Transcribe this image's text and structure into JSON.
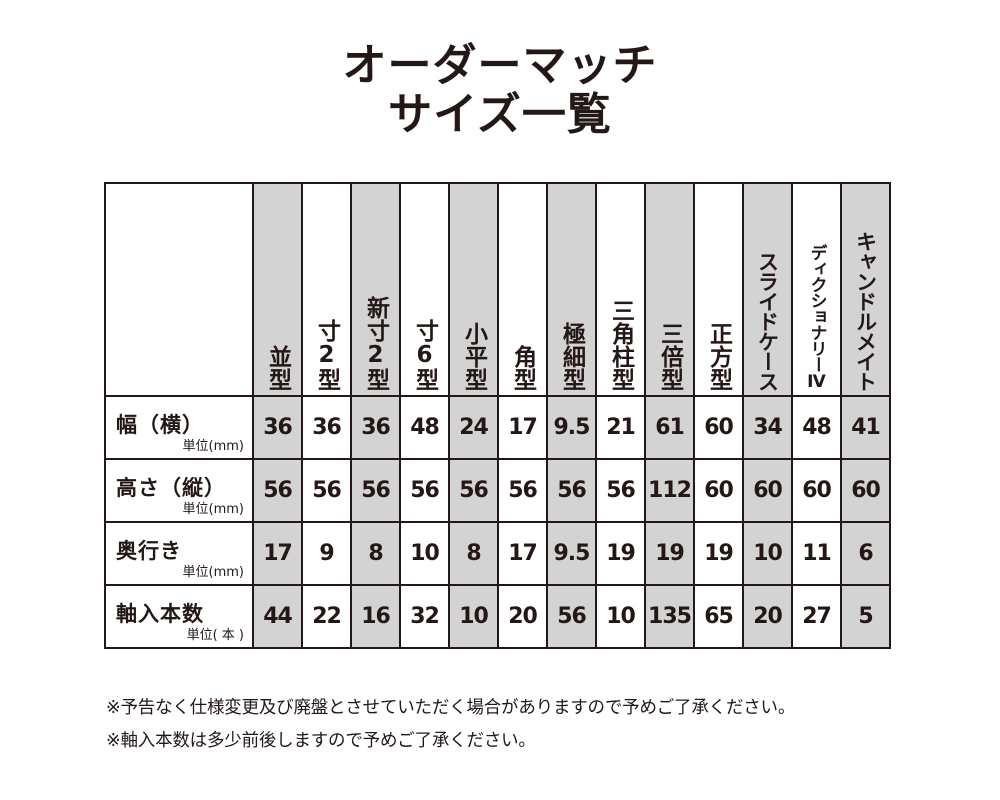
{
  "title": {
    "line1": "オーダーマッチ",
    "line2": "サイズ一覧"
  },
  "table": {
    "columns": [
      {
        "label": "並型",
        "shaded": true
      },
      {
        "label": "寸2型",
        "shaded": false
      },
      {
        "label": "新寸2型",
        "shaded": true
      },
      {
        "label": "寸6型",
        "shaded": false
      },
      {
        "label": "小平型",
        "shaded": true
      },
      {
        "label": "角型",
        "shaded": false
      },
      {
        "label": "極細型",
        "shaded": true
      },
      {
        "label": "三角柱型",
        "shaded": false
      },
      {
        "label": "三倍型",
        "shaded": true
      },
      {
        "label": "正方型",
        "shaded": false
      },
      {
        "label": "スライドケース",
        "shaded": true
      },
      {
        "label": "ディクショナリーⅣ",
        "shaded": false
      },
      {
        "label": "キャンドルメイト",
        "shaded": true
      }
    ],
    "rows": [
      {
        "label": "幅（横）",
        "unit": "単位(mm)",
        "values": [
          "36",
          "36",
          "36",
          "48",
          "24",
          "17",
          "9.5",
          "21",
          "61",
          "60",
          "34",
          "48",
          "41"
        ]
      },
      {
        "label": "高さ（縦）",
        "unit": "単位(mm)",
        "values": [
          "56",
          "56",
          "56",
          "56",
          "56",
          "56",
          "56",
          "56",
          "112",
          "60",
          "60",
          "60",
          "60"
        ]
      },
      {
        "label": "奥行き",
        "unit": "単位(mm)",
        "values": [
          "17",
          "9",
          "8",
          "10",
          "8",
          "17",
          "9.5",
          "19",
          "19",
          "19",
          "10",
          "11",
          "6"
        ]
      },
      {
        "label": "軸入本数",
        "unit": "単位( 本 )",
        "values": [
          "44",
          "22",
          "16",
          "32",
          "10",
          "20",
          "56",
          "10",
          "135",
          "65",
          "20",
          "27",
          "5"
        ]
      }
    ]
  },
  "notes": {
    "line1": "※予告なく仕様変更及び廃盤とさせていただく場合がありますので予めご了承ください。",
    "line2": "※軸入本数は多少前後しますので予めご了承ください。"
  },
  "colors": {
    "shade": "#d3d3d3",
    "text": "#231815"
  }
}
